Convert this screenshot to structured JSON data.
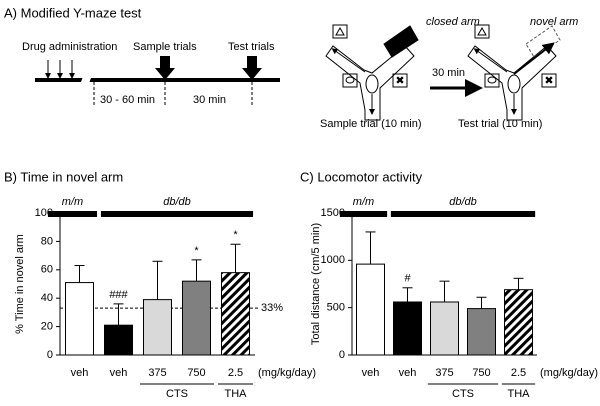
{
  "panel_a": {
    "title": "A) Modified Y-maze test",
    "timeline": {
      "drug": "Drug administration",
      "sample": "Sample trials",
      "test": "Test trials",
      "interval1": "30 - 60 min",
      "interval2": "30 min"
    },
    "maze": {
      "closed": "closed arm",
      "novel": "novel arm",
      "delay": "30 min",
      "sample_caption": "Sample trial (10  min)",
      "test_caption": "Test trial (10 min)"
    }
  },
  "chart_data": [
    {
      "type": "bar",
      "title": "B) Time in novel arm",
      "y_label": "% Time in novel arm",
      "categories": [
        "veh",
        "veh",
        "375",
        "750",
        "2.5"
      ],
      "values": [
        51,
        21,
        39,
        52,
        58
      ],
      "errors": [
        12,
        15,
        27,
        15,
        20
      ],
      "colors": [
        "#ffffff",
        "#000000",
        "#d9d9d9",
        "#808080",
        "#ffffff"
      ],
      "hatch": [
        false,
        false,
        false,
        false,
        true
      ],
      "ylim": [
        0,
        100
      ],
      "yticks": [
        0,
        20,
        40,
        60,
        80,
        100
      ],
      "annotations": [
        {
          "index": 1,
          "label": "###"
        },
        {
          "index": 3,
          "label": "*"
        },
        {
          "index": 4,
          "label": "*"
        }
      ],
      "reference": {
        "value": 33,
        "label": "33%"
      },
      "groups": [
        {
          "label": "m/m",
          "from": 0,
          "to": 0
        },
        {
          "label": "db/db",
          "from": 1,
          "to": 4
        }
      ],
      "drugs": [
        {
          "label": "CTS",
          "from": 2,
          "to": 3
        },
        {
          "label": "THA",
          "from": 4,
          "to": 4
        }
      ],
      "unit": "(mg/kg/day)"
    },
    {
      "type": "bar",
      "title": "C) Locomotor activity",
      "y_label": "Total distance (cm/5 min)",
      "categories": [
        "veh",
        "veh",
        "375",
        "750",
        "2.5"
      ],
      "values": [
        960,
        560,
        560,
        490,
        690
      ],
      "errors": [
        340,
        150,
        220,
        120,
        120
      ],
      "colors": [
        "#ffffff",
        "#000000",
        "#d9d9d9",
        "#808080",
        "#ffffff"
      ],
      "hatch": [
        false,
        false,
        false,
        false,
        true
      ],
      "ylim": [
        0,
        1500
      ],
      "yticks": [
        0,
        500,
        1000,
        1500
      ],
      "annotations": [
        {
          "index": 1,
          "label": "#"
        }
      ],
      "groups": [
        {
          "label": "m/m",
          "from": 0,
          "to": 0
        },
        {
          "label": "db/db",
          "from": 1,
          "to": 4
        }
      ],
      "drugs": [
        {
          "label": "CTS",
          "from": 2,
          "to": 3
        },
        {
          "label": "THA",
          "from": 4,
          "to": 4
        }
      ],
      "unit": "(mg/kg/day)"
    }
  ]
}
